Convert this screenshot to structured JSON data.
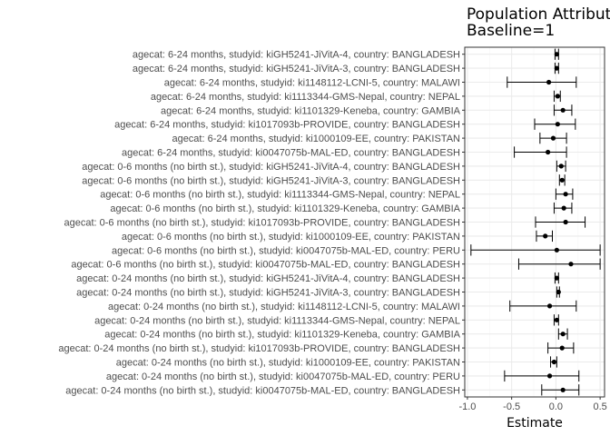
{
  "chart_data": {
    "type": "forest",
    "title": [
      "Population Attributa",
      "Baseline=1"
    ],
    "xlabel": "Estimate",
    "ylabel": "",
    "xlim": [
      -1.03,
      0.55
    ],
    "xticks": [
      -1.0,
      -0.5,
      0.0,
      0.5
    ],
    "xtick_labels": [
      "-1.0",
      "-0.5",
      "0.0",
      "0.5"
    ],
    "grid": true,
    "colors": {
      "panel_border": "#333333",
      "grid_major": "#ebebeb",
      "grid_minor": "#f5f5f5",
      "point": "#000000"
    },
    "rows": [
      {
        "label": "agecat: 6-24 months, studyid: kiGH5241-JiVitA-4, country: BANGLADESH",
        "estimate": 0.01,
        "lower": -0.01,
        "upper": 0.03
      },
      {
        "label": "agecat: 6-24 months, studyid: kiGH5241-JiVitA-3, country: BANGLADESH",
        "estimate": 0.01,
        "lower": -0.01,
        "upper": 0.03
      },
      {
        "label": "agecat: 6-24 months, studyid: ki1148112-LCNI-5, country: MALAWI",
        "estimate": -0.08,
        "lower": -0.55,
        "upper": 0.23
      },
      {
        "label": "agecat: 6-24 months, studyid: ki1113344-GMS-Nepal, country: NEPAL",
        "estimate": 0.02,
        "lower": -0.02,
        "upper": 0.05
      },
      {
        "label": "agecat: 6-24 months, studyid: ki1101329-Keneba, country: GAMBIA",
        "estimate": 0.08,
        "lower": -0.02,
        "upper": 0.18
      },
      {
        "label": "agecat: 6-24 months, studyid: ki1017093b-PROVIDE, country: BANGLADESH",
        "estimate": 0.02,
        "lower": -0.24,
        "upper": 0.22
      },
      {
        "label": "agecat: 6-24 months, studyid: ki1000109-EE, country: PAKISTAN",
        "estimate": -0.03,
        "lower": -0.18,
        "upper": 0.12
      },
      {
        "label": "agecat: 6-24 months, studyid: ki0047075b-MAL-ED, country: BANGLADESH",
        "estimate": -0.09,
        "lower": -0.47,
        "upper": 0.12
      },
      {
        "label": "agecat: 0-6 months (no birth st.), studyid: kiGH5241-JiVitA-4, country: BANGLADESH",
        "estimate": 0.06,
        "lower": 0.01,
        "upper": 0.11
      },
      {
        "label": "agecat: 0-6 months (no birth st.), studyid: kiGH5241-JiVitA-3, country: BANGLADESH",
        "estimate": 0.07,
        "lower": 0.04,
        "upper": 0.1
      },
      {
        "label": "agecat: 0-6 months (no birth st.), studyid: ki1113344-GMS-Nepal, country: NEPAL",
        "estimate": 0.11,
        "lower": 0.0,
        "upper": 0.19
      },
      {
        "label": "agecat: 0-6 months (no birth st.), studyid: ki1101329-Keneba, country: GAMBIA",
        "estimate": 0.09,
        "lower": -0.02,
        "upper": 0.18
      },
      {
        "label": "agecat: 0-6 months (no birth st.), studyid: ki1017093b-PROVIDE, country: BANGLADESH",
        "estimate": 0.11,
        "lower": -0.23,
        "upper": 0.33
      },
      {
        "label": "agecat: 0-6 months (no birth st.), studyid: ki1000109-EE, country: PAKISTAN",
        "estimate": -0.12,
        "lower": -0.22,
        "upper": -0.04
      },
      {
        "label": "agecat: 0-6 months (no birth st.), studyid: ki0047075b-MAL-ED, country: PERU",
        "estimate": 0.01,
        "lower": -0.96,
        "upper": 0.5
      },
      {
        "label": "agecat: 0-6 months (no birth st.), studyid: ki0047075b-MAL-ED, country: BANGLADESH",
        "estimate": 0.17,
        "lower": -0.42,
        "upper": 0.5
      },
      {
        "label": "agecat: 0-24 months (no birth st.), studyid: kiGH5241-JiVitA-4, country: BANGLADESH",
        "estimate": 0.01,
        "lower": -0.01,
        "upper": 0.03
      },
      {
        "label": "agecat: 0-24 months (no birth st.), studyid: kiGH5241-JiVitA-3, country: BANGLADESH",
        "estimate": 0.03,
        "lower": 0.01,
        "upper": 0.04
      },
      {
        "label": "agecat: 0-24 months (no birth st.), studyid: ki1148112-LCNI-5, country: MALAWI",
        "estimate": -0.07,
        "lower": -0.52,
        "upper": 0.23
      },
      {
        "label": "agecat: 0-24 months (no birth st.), studyid: ki1113344-GMS-Nepal, country: NEPAL",
        "estimate": 0.01,
        "lower": -0.02,
        "upper": 0.03
      },
      {
        "label": "agecat: 0-24 months (no birth st.), studyid: ki1101329-Keneba, country: GAMBIA",
        "estimate": 0.08,
        "lower": 0.03,
        "upper": 0.13
      },
      {
        "label": "agecat: 0-24 months (no birth st.), studyid: ki1017093b-PROVIDE, country: BANGLADESH",
        "estimate": 0.07,
        "lower": -0.09,
        "upper": 0.2
      },
      {
        "label": "agecat: 0-24 months (no birth st.), studyid: ki1000109-EE, country: PAKISTAN",
        "estimate": -0.02,
        "lower": -0.06,
        "upper": 0.01
      },
      {
        "label": "agecat: 0-24 months (no birth st.), studyid: ki0047075b-MAL-ED, country: PERU",
        "estimate": -0.07,
        "lower": -0.58,
        "upper": 0.26
      },
      {
        "label": "agecat: 0-24 months (no birth st.), studyid: ki0047075b-MAL-ED, country: BANGLADESH",
        "estimate": 0.08,
        "lower": -0.16,
        "upper": 0.26
      }
    ]
  }
}
